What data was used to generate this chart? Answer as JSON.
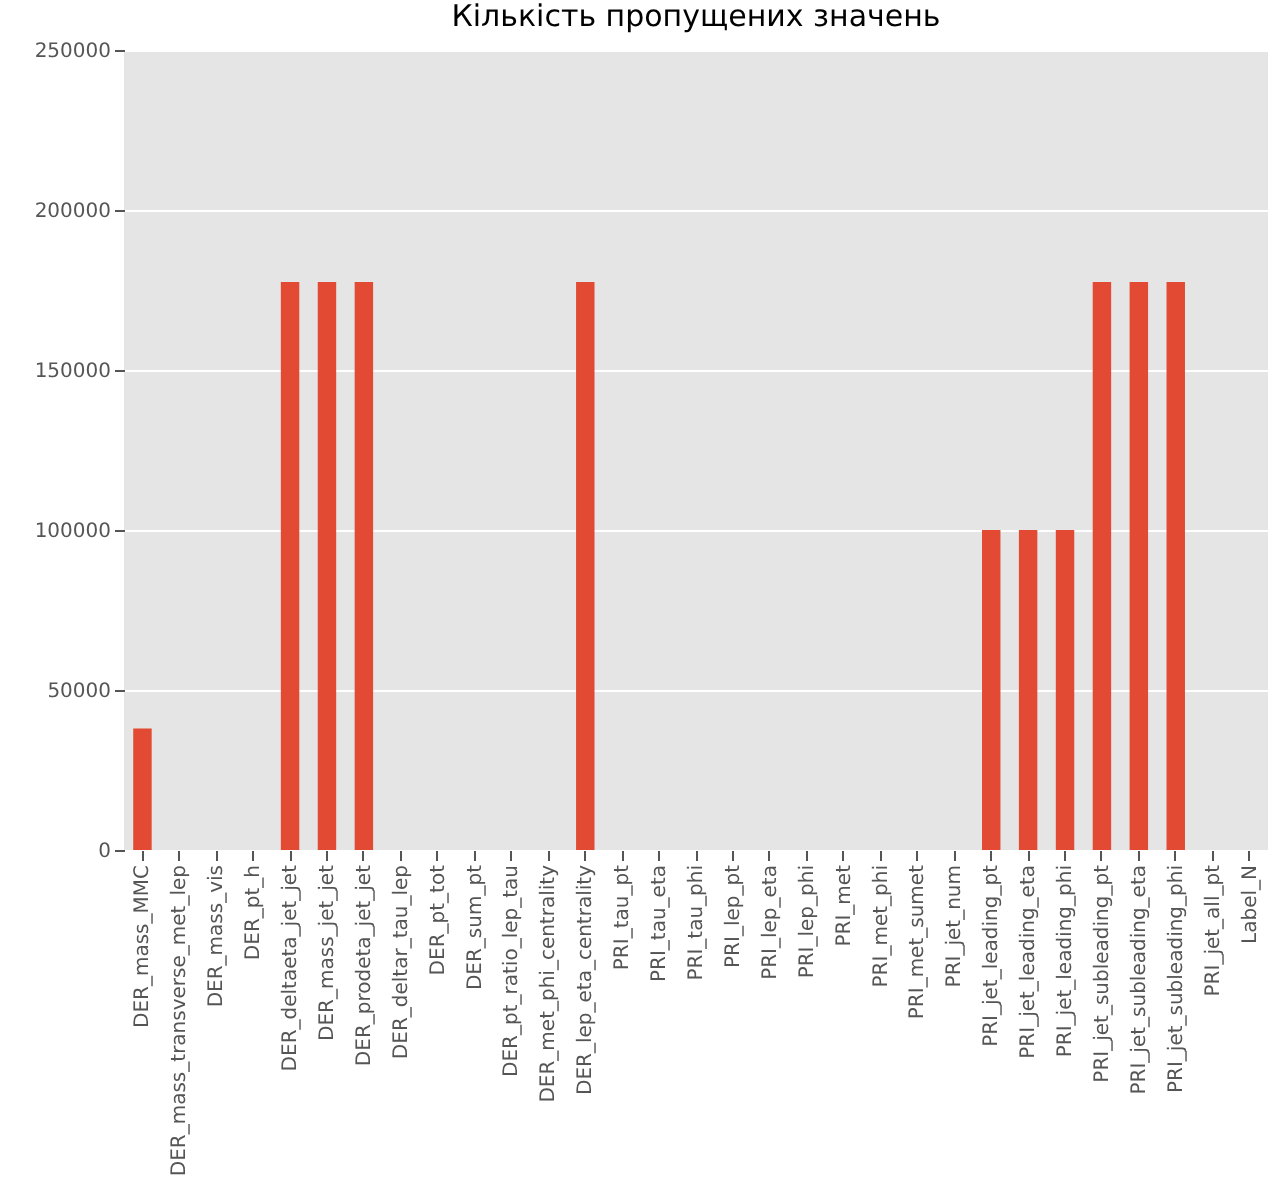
{
  "chart_data": {
    "type": "bar",
    "title": "Кількість пропущених значень",
    "categories": [
      "DER_mass_MMC",
      "DER_mass_transverse_met_lep",
      "DER_mass_vis",
      "DER_pt_h",
      "DER_deltaeta_jet_jet",
      "DER_mass_jet_jet",
      "DER_prodeta_jet_jet",
      "DER_deltar_tau_lep",
      "DER_pt_tot",
      "DER_sum_pt",
      "DER_pt_ratio_lep_tau",
      "DER_met_phi_centrality",
      "DER_lep_eta_centrality",
      "PRI_tau_pt",
      "PRI_tau_eta",
      "PRI_tau_phi",
      "PRI_lep_pt",
      "PRI_lep_eta",
      "PRI_lep_phi",
      "PRI_met",
      "PRI_met_phi",
      "PRI_met_sumet",
      "PRI_jet_num",
      "PRI_jet_leading_pt",
      "PRI_jet_leading_eta",
      "PRI_jet_leading_phi",
      "PRI_jet_subleading_pt",
      "PRI_jet_subleading_eta",
      "PRI_jet_subleading_phi",
      "PRI_jet_all_pt",
      "Label_N"
    ],
    "values": [
      38000,
      0,
      0,
      0,
      177500,
      177500,
      177500,
      0,
      0,
      0,
      0,
      0,
      177500,
      0,
      0,
      0,
      0,
      0,
      0,
      0,
      0,
      0,
      0,
      100000,
      100000,
      100000,
      177500,
      177500,
      177500,
      0,
      0
    ],
    "color": "#e24a33",
    "ylim": [
      0,
      250000
    ],
    "yticks": [
      0,
      50000,
      100000,
      150000,
      200000,
      250000
    ],
    "grid": true
  }
}
